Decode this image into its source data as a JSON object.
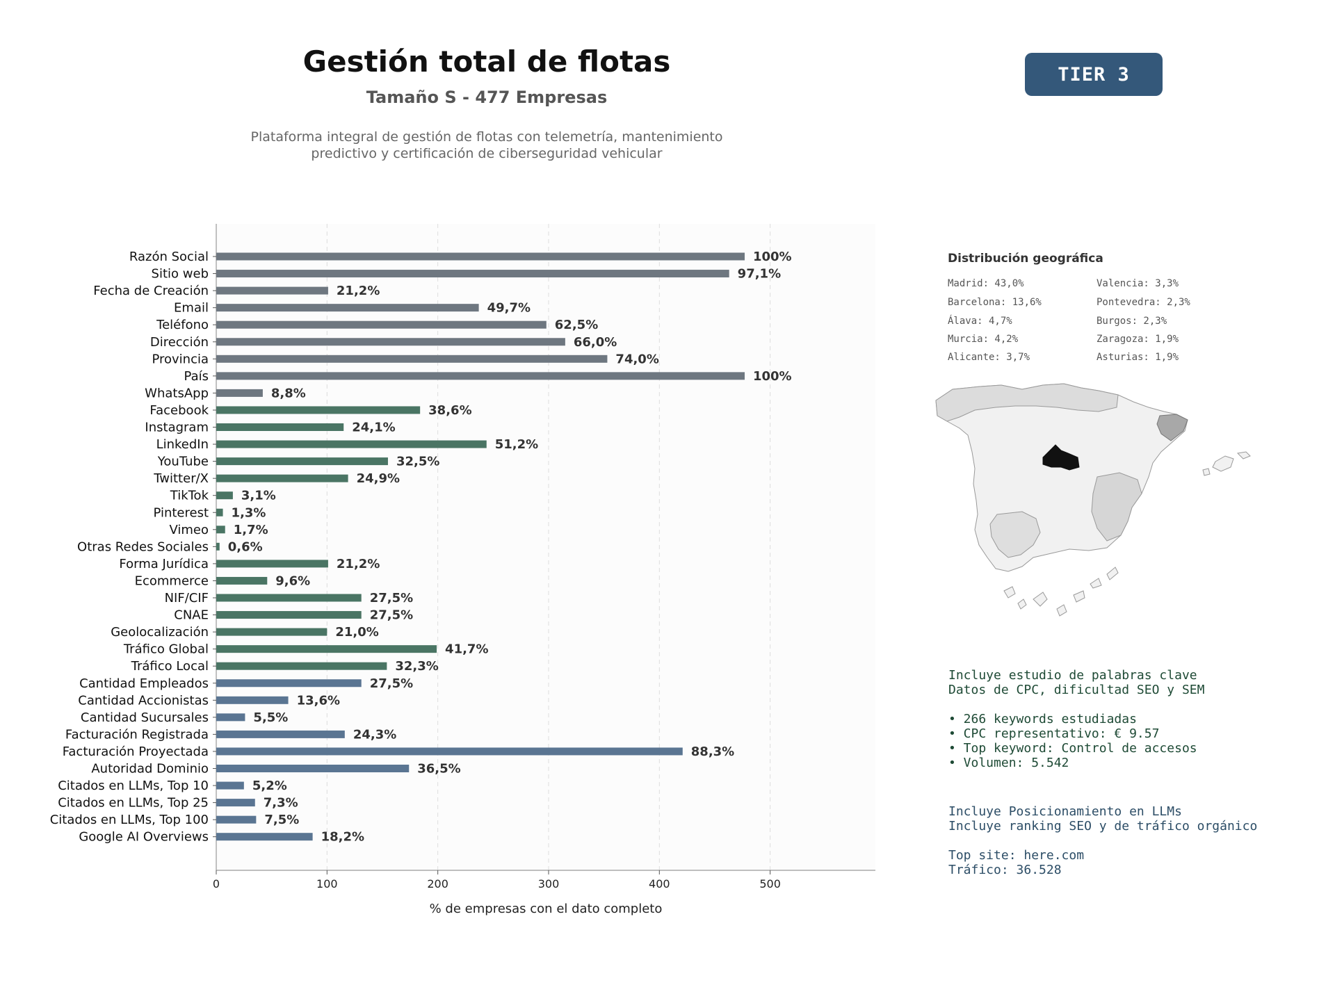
{
  "header": {
    "title": "Gestión total de flotas",
    "subtitle": "Tamaño S - 477 Empresas",
    "description_lines": [
      "Plataforma integral de gestión de flotas con telemetría, mantenimiento",
      "predictivo y certificación de ciberseguridad vehicular"
    ],
    "tier_label": "TIER 3"
  },
  "colors": {
    "gray": "#6e7780",
    "green": "#4a7564",
    "blue": "#5a7592",
    "tier_bg": "#34587a",
    "seo_text": "#1e4a35",
    "llm_text": "#2c4d66",
    "madrid": "#111111"
  },
  "chart_data": {
    "type": "bar",
    "orientation": "horizontal",
    "xlabel": "% de empresas con el dato completo",
    "xlim": [
      0,
      595
    ],
    "xticks": [
      0,
      100,
      200,
      300,
      400,
      500
    ],
    "grid": "x-dashed",
    "categories": [
      "Razón Social",
      "Sitio web",
      "Fecha de Creación",
      "Email",
      "Teléfono",
      "Dirección",
      "Provincia",
      "País",
      "WhatsApp",
      "Facebook",
      "Instagram",
      "LinkedIn",
      "YouTube",
      "Twitter/X",
      "TikTok",
      "Pinterest",
      "Vimeo",
      "Otras Redes Sociales",
      "Forma Jurídica",
      "Ecommerce",
      "NIF/CIF",
      "CNAE",
      "Geolocalización",
      "Tráfico Global",
      "Tráfico Local",
      "Cantidad Empleados",
      "Cantidad Accionistas",
      "Cantidad Sucursales",
      "Facturación Registrada",
      "Facturación Proyectada",
      "Autoridad Dominio",
      "Citados en LLMs, Top 10",
      "Citados en LLMs, Top 25",
      "Citados en LLMs, Top 100",
      "Google AI Overviews"
    ],
    "values": [
      477,
      463,
      101,
      237,
      298,
      315,
      353,
      477,
      42,
      184,
      115,
      244,
      155,
      119,
      15,
      6,
      8,
      3,
      101,
      46,
      131,
      131,
      100,
      199,
      154,
      131,
      65,
      26,
      116,
      421,
      174,
      25,
      35,
      36,
      87
    ],
    "labels": [
      "100%",
      "97,1%",
      "21,2%",
      "49,7%",
      "62,5%",
      "66,0%",
      "74,0%",
      "100%",
      "8,8%",
      "38,6%",
      "24,1%",
      "51,2%",
      "32,5%",
      "24,9%",
      "3,1%",
      "1,3%",
      "1,7%",
      "0,6%",
      "21,2%",
      "9,6%",
      "27,5%",
      "27,5%",
      "21,0%",
      "41,7%",
      "32,3%",
      "27,5%",
      "13,6%",
      "5,5%",
      "24,3%",
      "88,3%",
      "36,5%",
      "5,2%",
      "7,3%",
      "7,5%",
      "18,2%"
    ],
    "groups": [
      "gray",
      "gray",
      "gray",
      "gray",
      "gray",
      "gray",
      "gray",
      "gray",
      "gray",
      "green",
      "green",
      "green",
      "green",
      "green",
      "green",
      "green",
      "green",
      "green",
      "green",
      "green",
      "green",
      "green",
      "green",
      "green",
      "green",
      "blue",
      "blue",
      "blue",
      "blue",
      "blue",
      "blue",
      "blue",
      "blue",
      "blue",
      "blue"
    ]
  },
  "geo": {
    "title": "Distribución geográfica",
    "left": [
      "Madrid: 43,0%",
      "Barcelona: 13,6%",
      "Álava: 4,7%",
      "Murcia: 4,2%",
      "Alicante: 3,7%"
    ],
    "right": [
      "Valencia: 3,3%",
      "Pontevedra: 2,3%",
      "Burgos: 2,3%",
      "Zaragoza: 1,9%",
      "Asturias: 1,9%"
    ]
  },
  "seo_info": {
    "lines": [
      "Incluye estudio de palabras clave",
      "Datos de CPC, dificultad SEO y SEM",
      " ",
      "• 266 keywords estudiadas",
      "• CPC representativo: € 9.57",
      "• Top keyword: Control de accesos",
      "• Volumen: 5.542"
    ]
  },
  "llm_info": {
    "lines": [
      "Incluye Posicionamiento en LLMs",
      "Incluye ranking SEO y de tráfico orgánico",
      " ",
      "Top site: here.com",
      "Tráfico: 36.528"
    ]
  }
}
